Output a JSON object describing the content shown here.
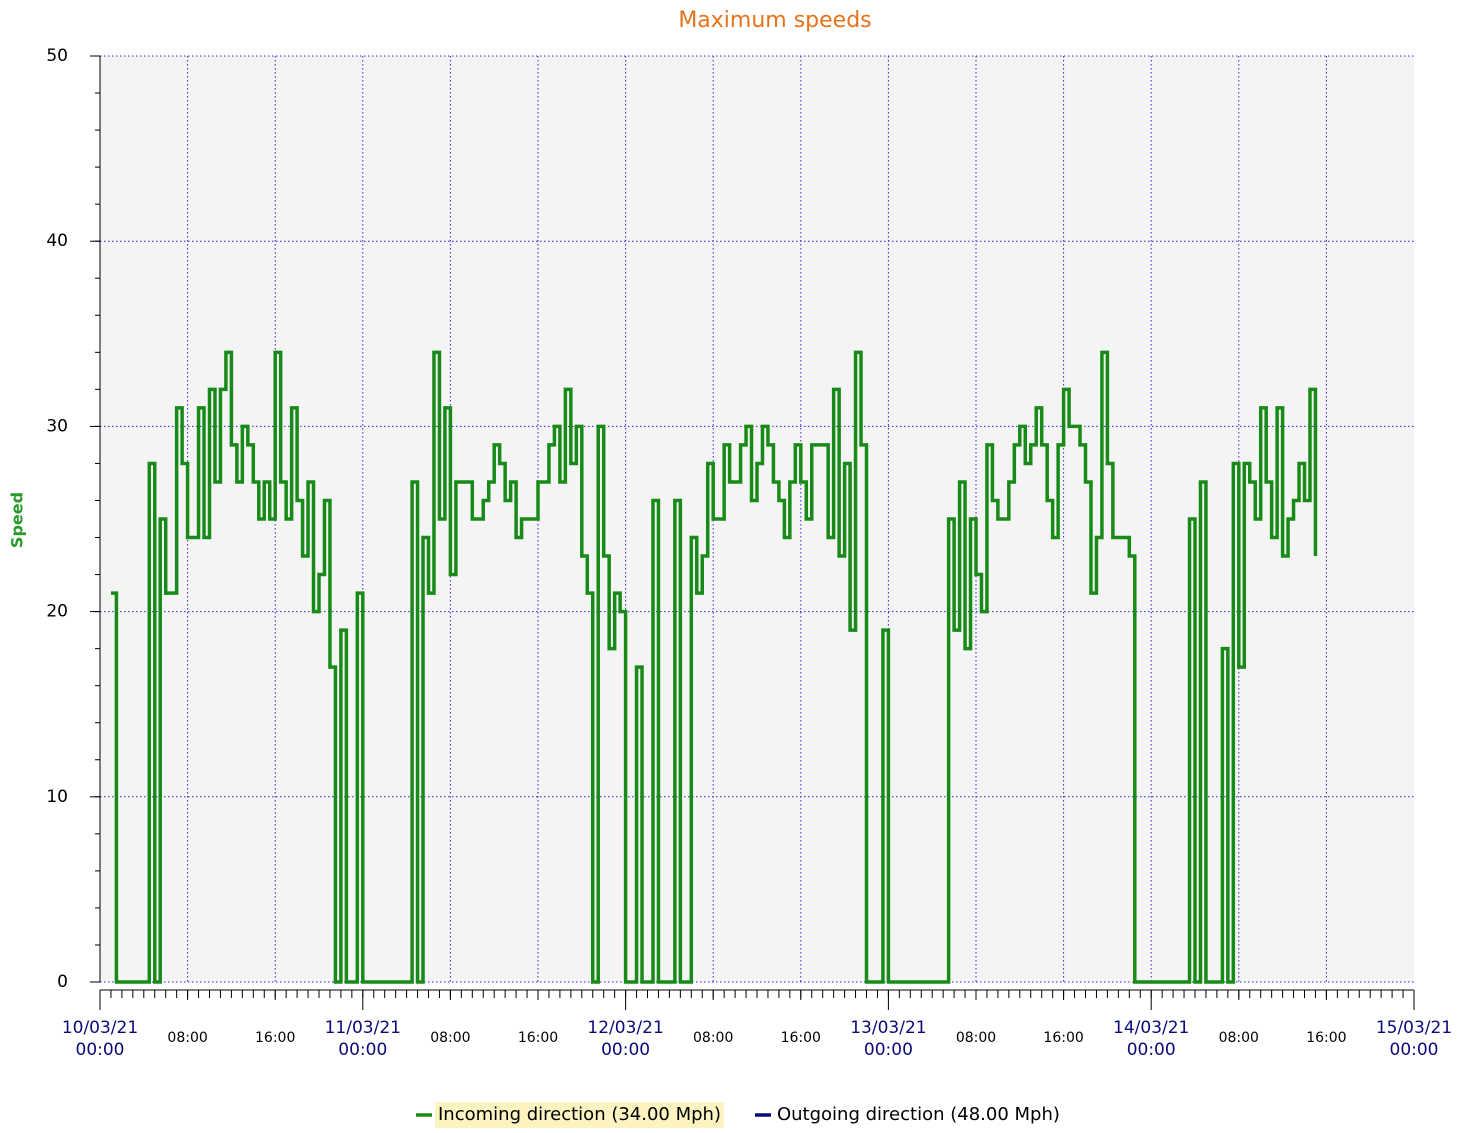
{
  "chart_data": {
    "type": "step",
    "title": "Maximum speeds",
    "y_label": "Speed",
    "xlim": [
      "10/03/21 00:00",
      "15/03/21 00:00"
    ],
    "xticks": [
      {
        "value": "10/03/21 00:00",
        "label": [
          "10/03/21",
          "00:00"
        ]
      },
      {
        "value": "10/03/21 08:00",
        "label": "08:00"
      },
      {
        "value": "10/03/21 16:00",
        "label": "16:00"
      },
      {
        "value": "11/03/21 00:00",
        "label": [
          "11/03/21",
          "00:00"
        ]
      },
      {
        "value": "11/03/21 08:00",
        "label": "08:00"
      },
      {
        "value": "11/03/21 16:00",
        "label": "16:00"
      },
      {
        "value": "12/03/21 00:00",
        "label": [
          "12/03/21",
          "00:00"
        ]
      },
      {
        "value": "12/03/21 08:00",
        "label": "08:00"
      },
      {
        "value": "12/03/21 16:00",
        "label": "16:00"
      },
      {
        "value": "13/03/21 00:00",
        "label": [
          "13/03/21",
          "00:00"
        ]
      },
      {
        "value": "13/03/21 08:00",
        "label": "08:00"
      },
      {
        "value": "13/03/21 16:00",
        "label": "16:00"
      },
      {
        "value": "14/03/21 00:00",
        "label": [
          "14/03/21",
          "00:00"
        ]
      },
      {
        "value": "14/03/21 08:00",
        "label": "08:00"
      },
      {
        "value": "14/03/21 16:00",
        "label": "16:00"
      },
      {
        "value": "15/03/21 00:00",
        "label": [
          "15/03/21",
          "00:00"
        ]
      }
    ],
    "ylim": [
      0,
      50
    ],
    "yticks": [
      0,
      10,
      20,
      30,
      40,
      50
    ],
    "grid": true,
    "series": [
      {
        "name": "Incoming direction (34.00 Mph)",
        "color": "#188a18",
        "highlight": true,
        "x": [
          "10/03/21 01:00",
          "10/03/21 01:30",
          "10/03/21 04:30",
          "10/03/21 05:00",
          "10/03/21 05:30",
          "10/03/21 06:00",
          "10/03/21 07:00",
          "10/03/21 07:30",
          "10/03/21 08:00",
          "10/03/21 09:00",
          "10/03/21 09:30",
          "10/03/21 10:00",
          "10/03/21 10:30",
          "10/03/21 11:00",
          "10/03/21 11:30",
          "10/03/21 12:00",
          "10/03/21 12:30",
          "10/03/21 13:00",
          "10/03/21 13:30",
          "10/03/21 14:00",
          "10/03/21 14:30",
          "10/03/21 15:00",
          "10/03/21 15:30",
          "10/03/21 16:00",
          "10/03/21 16:30",
          "10/03/21 17:00",
          "10/03/21 17:30",
          "10/03/21 18:00",
          "10/03/21 18:30",
          "10/03/21 19:00",
          "10/03/21 19:30",
          "10/03/21 20:00",
          "10/03/21 20:30",
          "10/03/21 21:00",
          "10/03/21 21:30",
          "10/03/21 22:00",
          "10/03/21 22:30",
          "10/03/21 23:30",
          "11/03/21 00:00",
          "11/03/21 04:30",
          "11/03/21 05:00",
          "11/03/21 05:30",
          "11/03/21 06:00",
          "11/03/21 06:30",
          "11/03/21 07:00",
          "11/03/21 07:30",
          "11/03/21 08:00",
          "11/03/21 08:30",
          "11/03/21 10:00",
          "11/03/21 11:00",
          "11/03/21 11:30",
          "11/03/21 12:00",
          "11/03/21 12:30",
          "11/03/21 13:00",
          "11/03/21 13:30",
          "11/03/21 14:00",
          "11/03/21 14:30",
          "11/03/21 16:00",
          "11/03/21 17:00",
          "11/03/21 17:30",
          "11/03/21 18:00",
          "11/03/21 18:30",
          "11/03/21 19:00",
          "11/03/21 19:30",
          "11/03/21 20:00",
          "11/03/21 20:30",
          "11/03/21 21:00",
          "11/03/21 21:30",
          "11/03/21 22:00",
          "11/03/21 22:30",
          "11/03/21 23:00",
          "11/03/21 23:30",
          "12/03/21 00:00",
          "12/03/21 01:00",
          "12/03/21 01:30",
          "12/03/21 02:30",
          "12/03/21 03:00",
          "12/03/21 04:30",
          "12/03/21 05:00",
          "12/03/21 06:00",
          "12/03/21 06:30",
          "12/03/21 07:00",
          "12/03/21 07:30",
          "12/03/21 08:00",
          "12/03/21 09:00",
          "12/03/21 09:30",
          "12/03/21 10:30",
          "12/03/21 11:00",
          "12/03/21 11:30",
          "12/03/21 12:00",
          "12/03/21 12:30",
          "12/03/21 13:00",
          "12/03/21 13:30",
          "12/03/21 14:00",
          "12/03/21 14:30",
          "12/03/21 15:00",
          "12/03/21 15:30",
          "12/03/21 16:00",
          "12/03/21 16:30",
          "12/03/21 17:00",
          "12/03/21 18:30",
          "12/03/21 19:00",
          "12/03/21 19:30",
          "12/03/21 20:00",
          "12/03/21 20:30",
          "12/03/21 21:00",
          "12/03/21 21:30",
          "12/03/21 22:00",
          "12/03/21 23:30",
          "13/03/21 00:00",
          "13/03/21 05:30",
          "13/03/21 06:00",
          "13/03/21 06:30",
          "13/03/21 07:00",
          "13/03/21 07:30",
          "13/03/21 08:00",
          "13/03/21 08:30",
          "13/03/21 09:00",
          "13/03/21 09:30",
          "13/03/21 10:00",
          "13/03/21 11:00",
          "13/03/21 11:30",
          "13/03/21 12:00",
          "13/03/21 12:30",
          "13/03/21 13:00",
          "13/03/21 13:30",
          "13/03/21 14:00",
          "13/03/21 14:30",
          "13/03/21 15:00",
          "13/03/21 15:30",
          "13/03/21 16:00",
          "13/03/21 16:30",
          "13/03/21 17:30",
          "13/03/21 18:00",
          "13/03/21 18:30",
          "13/03/21 19:00",
          "13/03/21 19:30",
          "13/03/21 20:00",
          "13/03/21 20:30",
          "13/03/21 22:00",
          "13/03/21 22:30",
          "14/03/21 03:30",
          "14/03/21 04:00",
          "14/03/21 04:30",
          "14/03/21 05:00",
          "14/03/21 06:30",
          "14/03/21 07:00",
          "14/03/21 07:30",
          "14/03/21 08:00",
          "14/03/21 08:30",
          "14/03/21 09:00",
          "14/03/21 09:30",
          "14/03/21 10:00",
          "14/03/21 10:30",
          "14/03/21 11:00",
          "14/03/21 11:30",
          "14/03/21 12:00",
          "14/03/21 12:30",
          "14/03/21 13:00",
          "14/03/21 13:30",
          "14/03/21 14:00",
          "14/03/21 14:30",
          "14/03/21 15:00"
        ],
        "values": [
          21,
          0,
          28,
          0,
          25,
          21,
          31,
          28,
          24,
          31,
          24,
          32,
          27,
          32,
          34,
          29,
          27,
          30,
          29,
          27,
          25,
          27,
          25,
          34,
          27,
          25,
          31,
          26,
          23,
          27,
          20,
          22,
          26,
          17,
          0,
          19,
          0,
          21,
          0,
          27,
          0,
          24,
          21,
          34,
          25,
          31,
          22,
          27,
          25,
          26,
          27,
          29,
          28,
          26,
          27,
          24,
          25,
          27,
          29,
          30,
          27,
          32,
          28,
          30,
          23,
          21,
          0,
          30,
          23,
          18,
          21,
          20,
          0,
          17,
          0,
          26,
          0,
          26,
          0,
          24,
          21,
          23,
          28,
          25,
          29,
          27,
          29,
          30,
          26,
          28,
          30,
          29,
          27,
          26,
          24,
          27,
          29,
          27,
          25,
          29,
          24,
          32,
          23,
          28,
          19,
          34,
          29,
          0,
          19,
          0,
          25,
          19,
          27,
          18,
          25,
          22,
          20,
          29,
          26,
          25,
          27,
          29,
          30,
          28,
          29,
          31,
          29,
          26,
          24,
          29,
          32,
          30,
          29,
          27,
          21,
          24,
          34,
          28,
          24,
          23,
          0,
          25,
          0,
          27,
          0,
          18,
          0,
          28,
          17,
          28,
          27,
          25,
          31,
          27,
          24,
          31,
          23,
          25,
          26,
          28,
          26,
          32,
          23
        ]
      },
      {
        "name": "Outgoing direction (48.00 Mph)",
        "color": "#0a0a7a",
        "highlight": false,
        "x": [],
        "values": []
      }
    ]
  }
}
